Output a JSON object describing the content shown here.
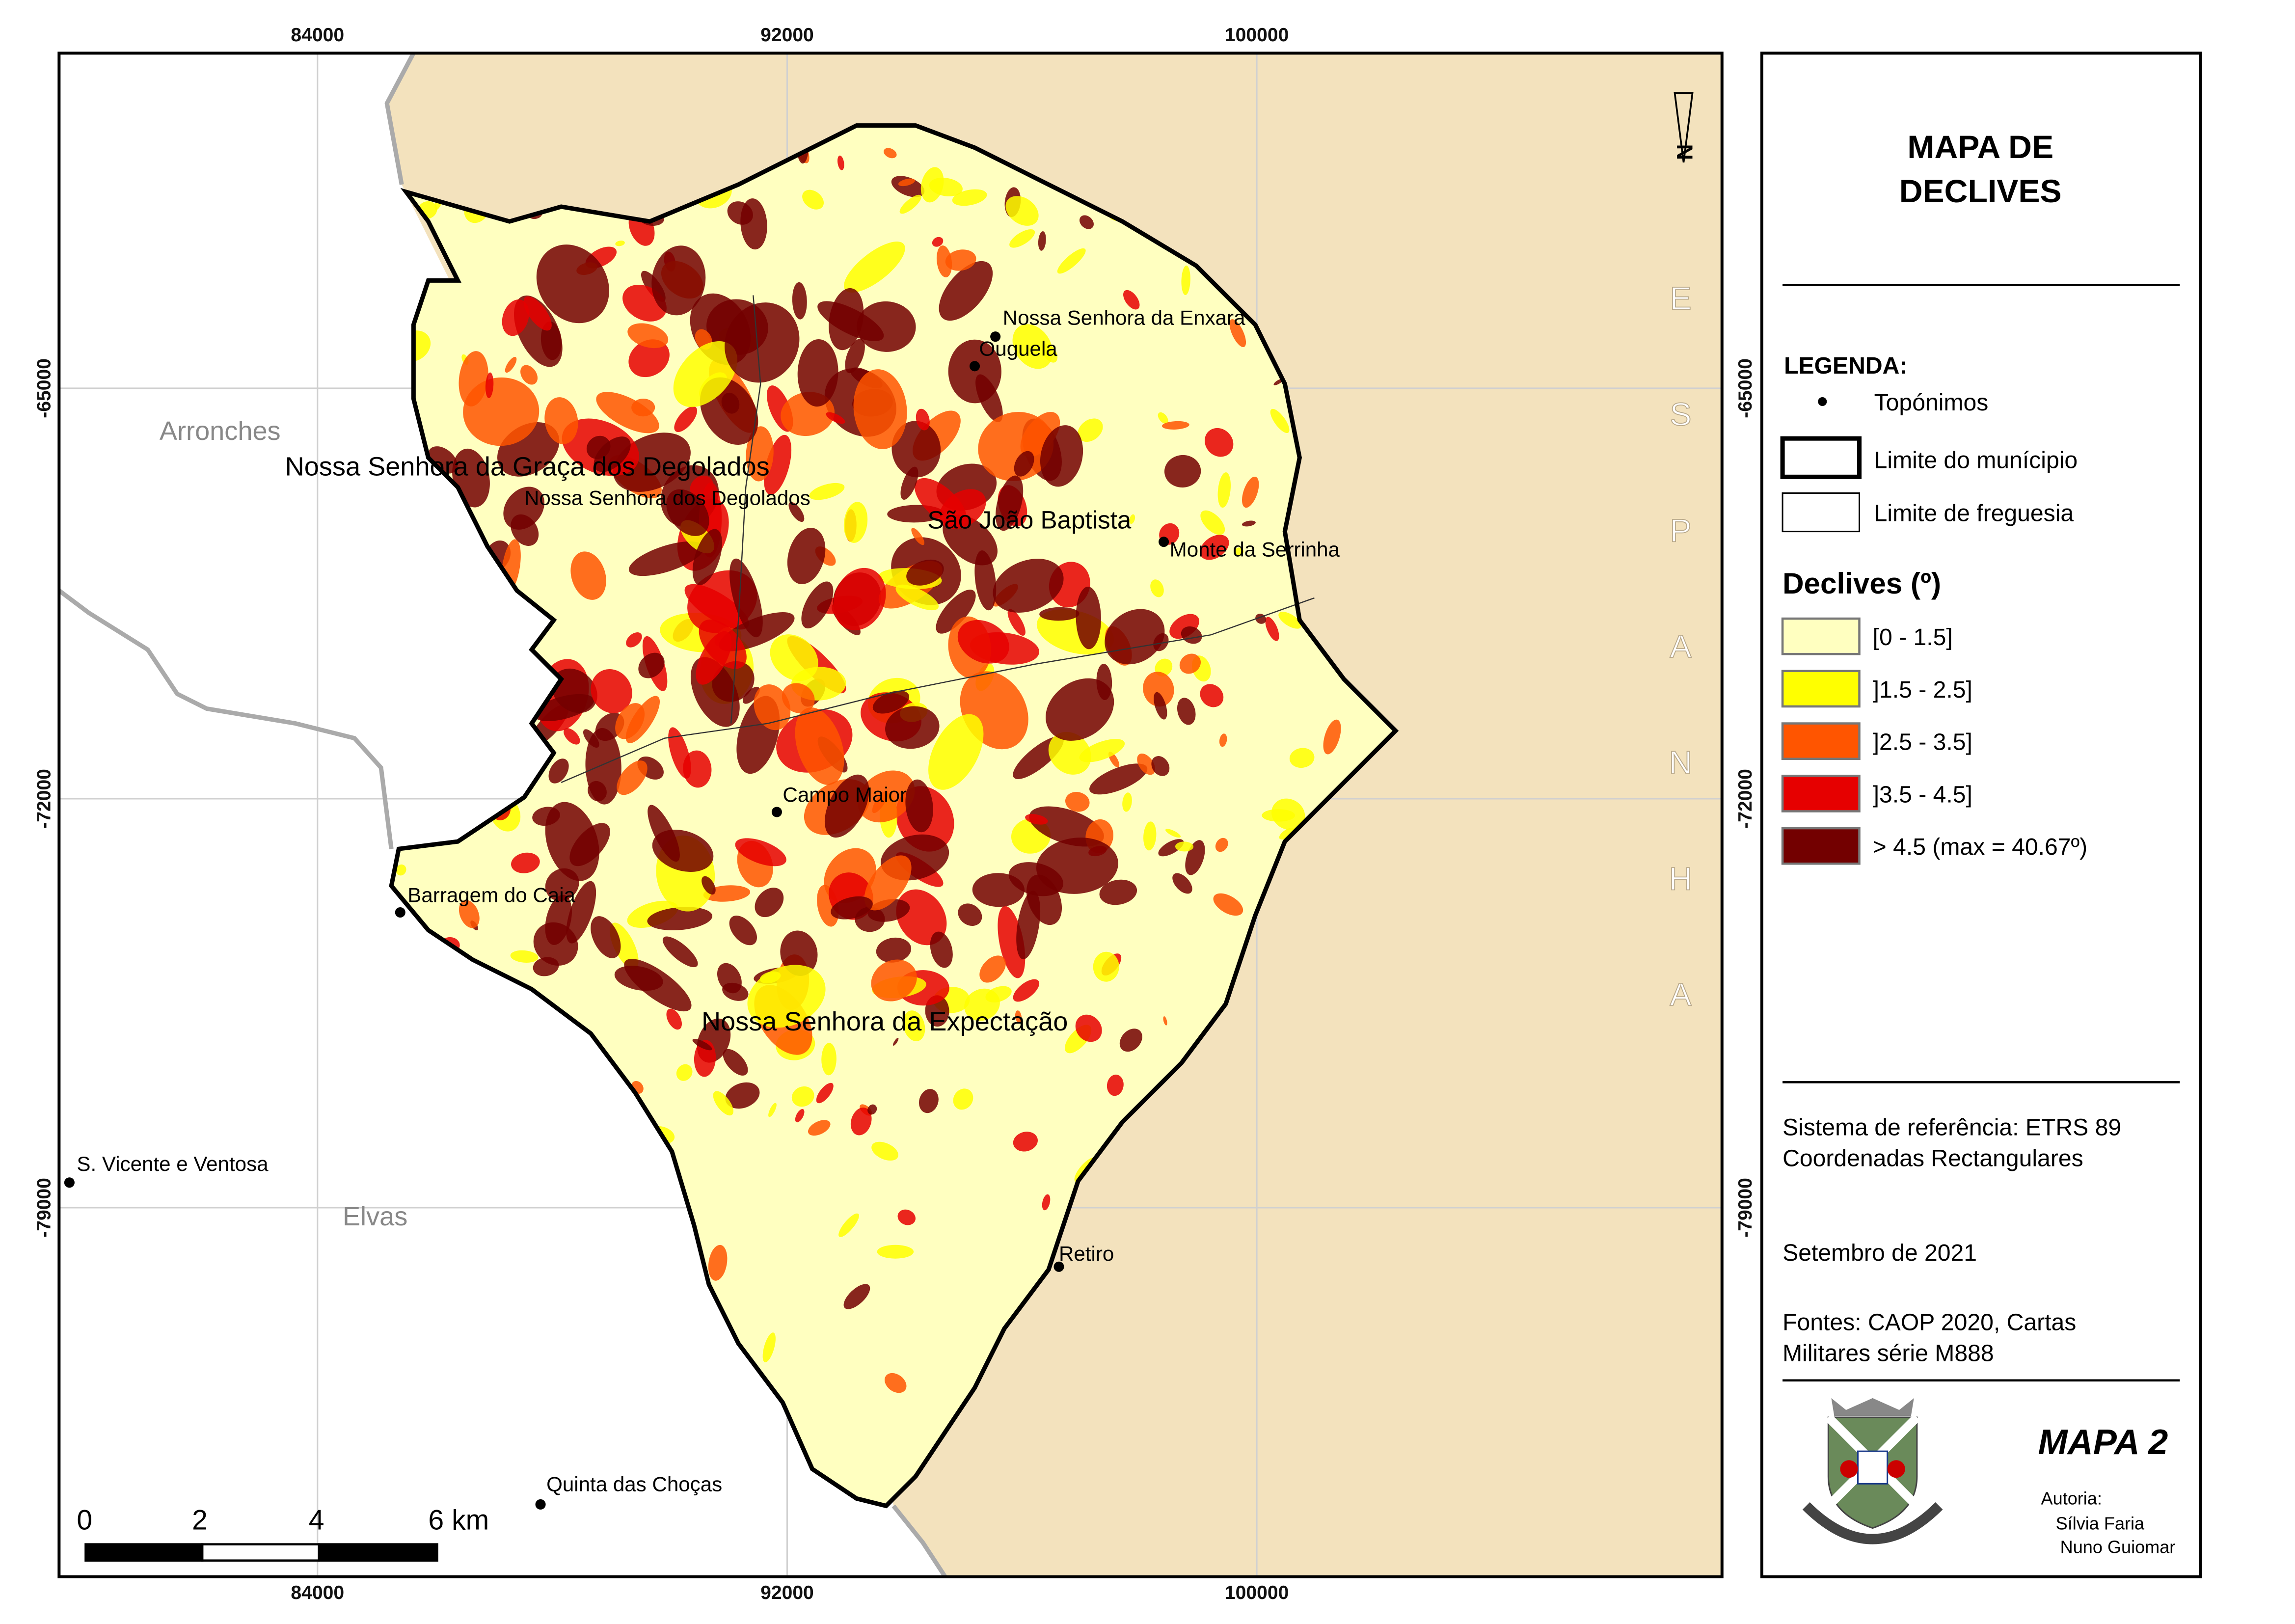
{
  "map": {
    "x_ticks": [
      "84000",
      "92000",
      "100000"
    ],
    "y_ticks": [
      "-65000",
      "-72000",
      "-79000"
    ],
    "north": "N",
    "country": "ESPANHA",
    "toponyms": [
      "Nossa Senhora da Enxara",
      "Ouguela",
      "Monte da Serrinha",
      "Campo Maior",
      "Retiro",
      "Barragem do Caia",
      "S. Vicente e Ventosa",
      "Quinta das Choças"
    ],
    "parishes": [
      "Nossa Senhora da Graça dos Degolados",
      "Nossa Senhora dos Degolados",
      "São João Baptista",
      "Nossa Senhora da Expectação"
    ],
    "municipalities": [
      "Arronches",
      "Elvas"
    ],
    "scale_labels": [
      "0",
      "2",
      "4",
      "6 km"
    ]
  },
  "panel": {
    "title_lines": [
      "MAPA DE",
      "DECLIVES"
    ],
    "legend_heading": "LEGENDA:",
    "legend_items": [
      "Topónimos",
      "Limite do munícipio",
      "Limite de freguesia"
    ],
    "slope_heading": "Declives (º)",
    "slope_classes": [
      {
        "label": "[0 - 1.5]",
        "color": "#ffffc0"
      },
      {
        "label": "]1.5 - 2.5]",
        "color": "#ffff00"
      },
      {
        "label": "]2.5 - 3.5]",
        "color": "#ff5500"
      },
      {
        "label": "]3.5 - 4.5]",
        "color": "#e60000"
      },
      {
        "label": "> 4.5 (max = 40.67º)",
        "color": "#730000"
      }
    ],
    "reference": [
      "Sistema de referência: ETRS 89",
      "Coordenadas Rectangulares"
    ],
    "date": "Setembro de 2021",
    "sources": [
      "Fontes: CAOP 2020, Cartas",
      "Militares série M888"
    ],
    "map_number": "MAPA 2",
    "author_heading": "Autoria:",
    "authors": [
      "Sílvia Faria",
      "Nuno Guiomar"
    ]
  }
}
